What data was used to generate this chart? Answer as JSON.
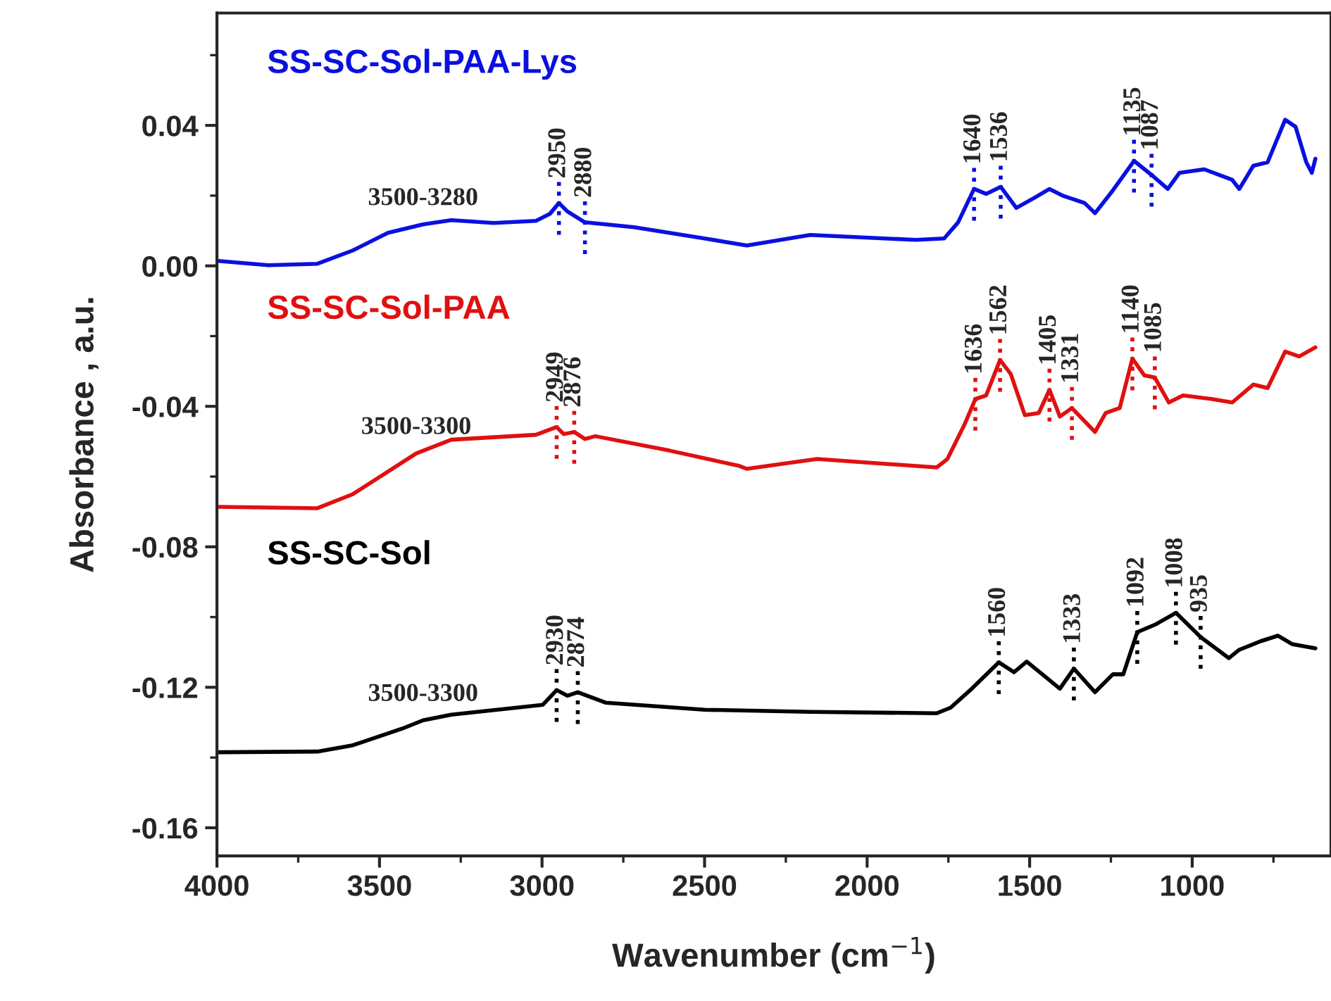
{
  "chart_data": {
    "type": "line",
    "xlabel": "Wavenumber (cm$^{−1}$)",
    "ylabel": "Absorbance , a.u.",
    "xlim": [
      4000,
      573
    ],
    "ylim": [
      -0.168,
      0.072
    ],
    "xticks": [
      4000,
      3500,
      3000,
      2500,
      2000,
      1500,
      1000
    ],
    "yticks": [
      {
        "value": 0.04,
        "label": "0.04"
      },
      {
        "value": 0.0,
        "label": "0.00"
      },
      {
        "value": -0.04,
        "label": "-0.04"
      },
      {
        "value": -0.08,
        "label": "-0.08"
      },
      {
        "value": -0.12,
        "label": "-0.12"
      },
      {
        "value": -0.16,
        "label": "-0.16"
      }
    ],
    "grid": false,
    "legend": false,
    "marker": "none",
    "line_style": "solid",
    "series": [
      {
        "name": "SS-SC-Sol-PAA-Lys",
        "color": "#0a10e0",
        "x": [
          3994,
          3842,
          3691,
          3582,
          3474,
          3366,
          3279,
          3149,
          3019,
          2976,
          2948,
          2922,
          2868,
          2717,
          2500,
          2370,
          2175,
          1850,
          1763,
          1720,
          1671,
          1634,
          1589,
          1541,
          1483,
          1439,
          1396,
          1331,
          1299,
          1244,
          1179,
          1125,
          1075,
          1039,
          963,
          877,
          855,
          812,
          768,
          714,
          682,
          649,
          632,
          621
        ],
        "values": [
          0.0014,
          0.0002,
          0.0006,
          0.0044,
          0.0094,
          0.0118,
          0.013,
          0.0122,
          0.0128,
          0.0148,
          0.0179,
          0.0155,
          0.0124,
          0.011,
          0.0078,
          0.0058,
          0.0088,
          0.0074,
          0.0078,
          0.0124,
          0.0219,
          0.0205,
          0.0225,
          0.0165,
          0.0195,
          0.0219,
          0.0199,
          0.0179,
          0.015,
          0.0215,
          0.0299,
          0.0259,
          0.0219,
          0.0265,
          0.0275,
          0.0245,
          0.0219,
          0.0285,
          0.0295,
          0.0416,
          0.0396,
          0.0295,
          0.0265,
          0.0305
        ]
      },
      {
        "name": "SS-SC-Sol-PAA",
        "color": "#e01010",
        "x": [
          3994,
          3691,
          3582,
          3387,
          3279,
          3019,
          2955,
          2933,
          2901,
          2868,
          2836,
          2608,
          2392,
          2370,
          2154,
          1786,
          1753,
          1699,
          1667,
          1634,
          1591,
          1558,
          1515,
          1472,
          1439,
          1407,
          1370,
          1299,
          1266,
          1223,
          1184,
          1147,
          1115,
          1072,
          1028,
          941,
          877,
          812,
          768,
          714,
          671,
          621
        ],
        "values": [
          -0.0686,
          -0.069,
          -0.065,
          -0.0534,
          -0.0495,
          -0.0481,
          -0.0459,
          -0.0479,
          -0.0473,
          -0.0493,
          -0.0485,
          -0.0526,
          -0.057,
          -0.0578,
          -0.055,
          -0.0574,
          -0.055,
          -0.0449,
          -0.0379,
          -0.0369,
          -0.0268,
          -0.0308,
          -0.0425,
          -0.0419,
          -0.0353,
          -0.0429,
          -0.0405,
          -0.0473,
          -0.0419,
          -0.0405,
          -0.0264,
          -0.0312,
          -0.0318,
          -0.0389,
          -0.0369,
          -0.0379,
          -0.0389,
          -0.0338,
          -0.0348,
          -0.0244,
          -0.0258,
          -0.0232
        ]
      },
      {
        "name": "SS-SC-Sol",
        "color": "#000000",
        "x": [
          3994,
          3691,
          3582,
          3431,
          3366,
          3279,
          2998,
          2955,
          2922,
          2890,
          2803,
          2500,
          2175,
          1786,
          1743,
          1678,
          1595,
          1548,
          1509,
          1461,
          1407,
          1364,
          1299,
          1244,
          1212,
          1169,
          1115,
          1050,
          974,
          887,
          855,
          790,
          736,
          693,
          621
        ],
        "values": [
          -0.1385,
          -0.1383,
          -0.1365,
          -0.1318,
          -0.1294,
          -0.1278,
          -0.125,
          -0.1208,
          -0.1224,
          -0.1214,
          -0.1244,
          -0.1264,
          -0.127,
          -0.1274,
          -0.1258,
          -0.1204,
          -0.1129,
          -0.1157,
          -0.1127,
          -0.1163,
          -0.1204,
          -0.1147,
          -0.1214,
          -0.1163,
          -0.1163,
          -0.1043,
          -0.1022,
          -0.0988,
          -0.1057,
          -0.1117,
          -0.1093,
          -0.1069,
          -0.1053,
          -0.1077,
          -0.1089
        ]
      }
    ],
    "annotations": [
      {
        "text": "3500-3280",
        "x": 3366,
        "y": 0.0118
      },
      {
        "text": "2950",
        "x": 2948,
        "y": 0.0179
      },
      {
        "text": "2880",
        "x": 2868,
        "y": 0.0124
      },
      {
        "text": "1640",
        "x": 1671,
        "y": 0.0219
      },
      {
        "text": "1536",
        "x": 1589,
        "y": 0.0225
      },
      {
        "text": "1135",
        "x": 1179,
        "y": 0.0299
      },
      {
        "text": "1087",
        "x": 1125,
        "y": 0.0259
      },
      {
        "text": "3500-3300",
        "x": 3387,
        "y": -0.0534
      },
      {
        "text": "2949",
        "x": 2955,
        "y": -0.0459
      },
      {
        "text": "2876",
        "x": 2901,
        "y": -0.0473
      },
      {
        "text": "1636",
        "x": 1667,
        "y": -0.0379
      },
      {
        "text": "1562",
        "x": 1591,
        "y": -0.0268
      },
      {
        "text": "1405",
        "x": 1439,
        "y": -0.0353
      },
      {
        "text": "1331",
        "x": 1370,
        "y": -0.0405
      },
      {
        "text": "1140",
        "x": 1184,
        "y": -0.0264
      },
      {
        "text": "1085",
        "x": 1115,
        "y": -0.0318
      },
      {
        "text": "3500-3300",
        "x": 3366,
        "y": -0.1294
      },
      {
        "text": "2930",
        "x": 2955,
        "y": -0.1208
      },
      {
        "text": "2874",
        "x": 2890,
        "y": -0.1214
      },
      {
        "text": "1560",
        "x": 1595,
        "y": -0.1129
      },
      {
        "text": "1333",
        "x": 1364,
        "y": -0.1147
      },
      {
        "text": "1092",
        "x": 1169,
        "y": -0.1043
      },
      {
        "text": "1008",
        "x": 1050,
        "y": -0.0988
      },
      {
        "text": "935",
        "x": 974,
        "y": -0.1057
      }
    ]
  }
}
